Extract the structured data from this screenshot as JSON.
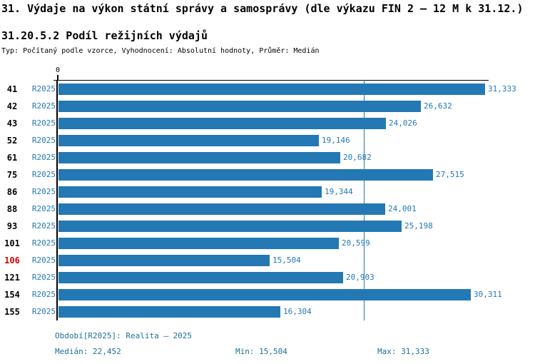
{
  "header": {
    "title": "31. Výdaje na výkon státní správy a samosprávy (dle výkazu FIN 2 – 12 M k 31.12.)",
    "subtitle": "31.20.5.2 Podíl režijních výdajů",
    "type_line": "Typ: Počítaný podle vzorce, Vyhodnocení: Absolutní hodnoty, Průměr: Medián"
  },
  "chart_data": {
    "type": "bar",
    "orientation": "horizontal",
    "title": "31.20.5.2 Podíl režijních výdajů",
    "x_axis": {
      "origin_label": "0",
      "xlim": [
        0,
        31650
      ],
      "gridlines": false
    },
    "series_name": "R2025",
    "median_line": {
      "value": 22452
    },
    "categories": [
      "41",
      "42",
      "43",
      "52",
      "61",
      "75",
      "86",
      "88",
      "93",
      "101",
      "106",
      "121",
      "154",
      "155"
    ],
    "rows": [
      {
        "category": "41",
        "period": "R2025",
        "value": 31333,
        "label": "31,333",
        "highlighted": false
      },
      {
        "category": "42",
        "period": "R2025",
        "value": 26632,
        "label": "26,632",
        "highlighted": false
      },
      {
        "category": "43",
        "period": "R2025",
        "value": 24026,
        "label": "24,026",
        "highlighted": false
      },
      {
        "category": "52",
        "period": "R2025",
        "value": 19146,
        "label": "19,146",
        "highlighted": false
      },
      {
        "category": "61",
        "period": "R2025",
        "value": 20682,
        "label": "20,682",
        "highlighted": false
      },
      {
        "category": "75",
        "period": "R2025",
        "value": 27515,
        "label": "27,515",
        "highlighted": false
      },
      {
        "category": "86",
        "period": "R2025",
        "value": 19344,
        "label": "19,344",
        "highlighted": false
      },
      {
        "category": "88",
        "period": "R2025",
        "value": 24001,
        "label": "24,001",
        "highlighted": false
      },
      {
        "category": "93",
        "period": "R2025",
        "value": 25198,
        "label": "25,198",
        "highlighted": false
      },
      {
        "category": "101",
        "period": "R2025",
        "value": 20599,
        "label": "20,599",
        "highlighted": false
      },
      {
        "category": "106",
        "period": "R2025",
        "value": 15504,
        "label": "15,504",
        "highlighted": true
      },
      {
        "category": "121",
        "period": "R2025",
        "value": 20903,
        "label": "20,903",
        "highlighted": false
      },
      {
        "category": "154",
        "period": "R2025",
        "value": 30311,
        "label": "30,311",
        "highlighted": false
      },
      {
        "category": "155",
        "period": "R2025",
        "value": 16304,
        "label": "16,304",
        "highlighted": false
      }
    ],
    "colors": {
      "bar": "#2478b4",
      "median_line": "#2478b4",
      "value_label": "#2478b4",
      "highlighted_category": "#d40000",
      "footer_text": "#1d7095"
    }
  },
  "footer": {
    "period_line": "Období[R2025]: Realita – 2025",
    "median": "Medián: 22,452",
    "min": "Min: 15,504",
    "max": "Max: 31,333"
  }
}
